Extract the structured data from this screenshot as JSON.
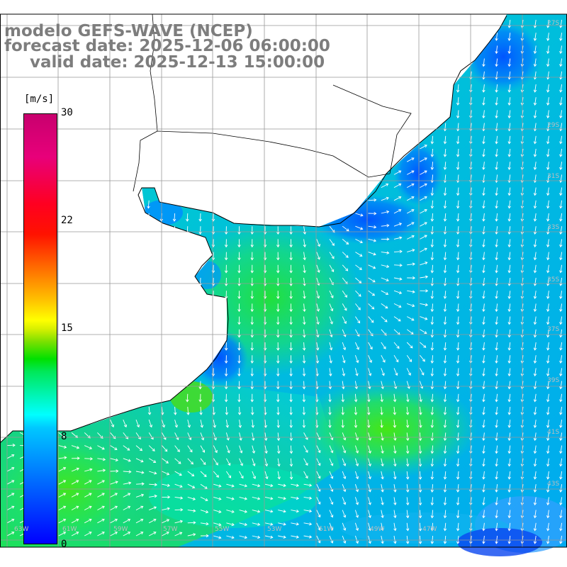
{
  "title": {
    "line1": "modelo GEFS-WAVE (NCEP)",
    "line2": "forecast date: 2025-12-06 06:00:00",
    "line3": "valid date: 2025-12-13 15:00:00"
  },
  "colorbar": {
    "unit": "[m/s]",
    "ticks": [
      "30",
      "22",
      "15",
      "8",
      "0"
    ],
    "range": [
      0,
      30
    ],
    "colors": [
      "#0000ff",
      "#00c8ff",
      "#00ffff",
      "#00e000",
      "#ffff00",
      "#ff7a00",
      "#ff0020",
      "#c8006e"
    ]
  },
  "map": {
    "land_color": "#ffffff",
    "coastline_color": "#000000",
    "grid_color": "#999999",
    "vector_color": "#ffffff",
    "grid_labels_bottom": [
      "63W",
      "61W",
      "59W",
      "57W",
      "55W",
      "53W",
      "51W",
      "49W",
      "47W"
    ],
    "grid_labels_right": [
      "27S",
      "29S",
      "31S",
      "33S",
      "35S",
      "37S",
      "39S",
      "41S",
      "43S"
    ]
  }
}
